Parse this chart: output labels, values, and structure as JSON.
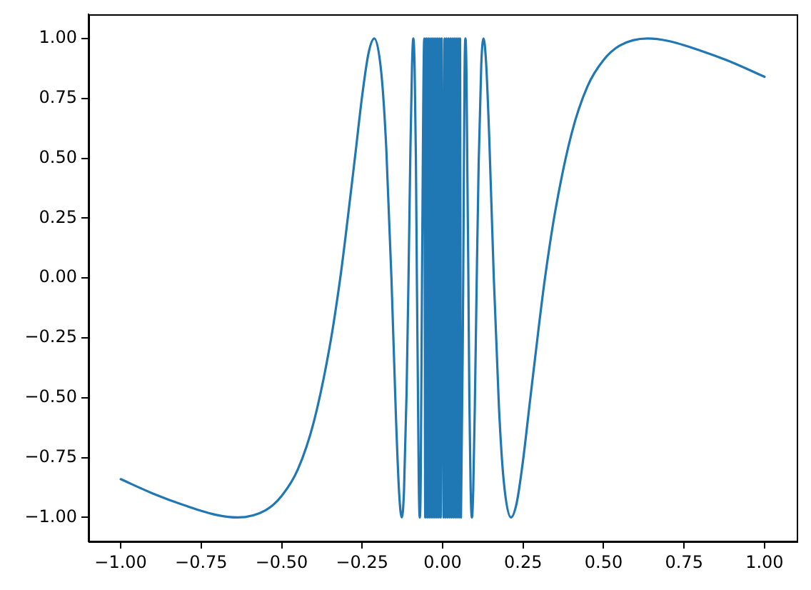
{
  "chart_data": {
    "type": "line",
    "x": [
      -1,
      -0.9,
      -0.8,
      -0.7,
      -0.637,
      -0.55,
      -0.5,
      -0.45,
      -0.4,
      -0.35,
      -0.318,
      -0.3,
      -0.27,
      -0.25,
      -0.23,
      -0.212,
      -0.19,
      -0.175,
      -0.159,
      -0.145,
      -0.135,
      -0.127,
      -0.12,
      -0.112,
      -0.106,
      -0.1,
      -0.095,
      -0.091,
      -0.087,
      -0.083,
      -0.08,
      -0.077,
      -0.074,
      -0.071,
      -0.068,
      -0.064,
      -0.057,
      -0.054,
      -0.051,
      -0.048,
      -0.045,
      -0.042,
      -0.039,
      -0.036,
      -0.033,
      -0.03,
      -0.027,
      -0.024,
      -0.021,
      -0.018,
      -0.015,
      -0.012,
      -0.009,
      -0.006,
      -0.003,
      0.003,
      0.006,
      0.009,
      0.012,
      0.015,
      0.018,
      0.021,
      0.024,
      0.027,
      0.03,
      0.033,
      0.036,
      0.039,
      0.042,
      0.045,
      0.048,
      0.051,
      0.054,
      0.057,
      0.064,
      0.068,
      0.071,
      0.074,
      0.077,
      0.08,
      0.083,
      0.087,
      0.091,
      0.095,
      0.1,
      0.106,
      0.112,
      0.12,
      0.127,
      0.135,
      0.145,
      0.159,
      0.175,
      0.19,
      0.212,
      0.23,
      0.25,
      0.27,
      0.3,
      0.318,
      0.35,
      0.4,
      0.45,
      0.5,
      0.55,
      0.637,
      0.7,
      0.8,
      0.9,
      1
    ],
    "series": [
      {
        "color": "#1f77b4",
        "values": [
          -0.84,
          -0.9,
          -0.95,
          -0.99,
          -1,
          -0.97,
          -0.91,
          -0.8,
          -0.6,
          -0.28,
          0,
          0.19,
          0.53,
          0.76,
          0.94,
          1,
          0.85,
          0.54,
          0,
          -0.58,
          -0.9,
          -1,
          -0.89,
          -0.48,
          0,
          0.54,
          0.89,
          1,
          0.88,
          0.5,
          0,
          -0.42,
          -0.86,
          -1,
          -0.84,
          0,
          1,
          -1,
          1,
          -1,
          1,
          -1,
          1,
          -1,
          1,
          -1,
          1,
          -1,
          1,
          -1,
          1,
          -1,
          1,
          -1,
          1,
          -1,
          1,
          -1,
          1,
          -1,
          1,
          -1,
          1,
          -1,
          1,
          -1,
          1,
          -1,
          1,
          -1,
          1,
          -1,
          1,
          -1,
          0,
          0.84,
          1,
          0.86,
          0.42,
          0,
          -0.5,
          -0.88,
          -1,
          -0.89,
          -0.54,
          0,
          0.48,
          0.89,
          1,
          0.9,
          0.58,
          0,
          -0.54,
          -0.85,
          -1,
          -0.94,
          -0.76,
          -0.53,
          -0.19,
          0,
          0.28,
          0.6,
          0.8,
          0.91,
          0.97,
          1,
          0.99,
          0.95,
          0.9,
          0.84
        ]
      }
    ],
    "xlim": [
      -1.1,
      1.1
    ],
    "ylim": [
      -1.1,
      1.1
    ],
    "xticks": [
      {
        "value": -1,
        "label": "−1.00"
      },
      {
        "value": -0.75,
        "label": "−0.75"
      },
      {
        "value": -0.5,
        "label": "−0.50"
      },
      {
        "value": -0.25,
        "label": "−0.25"
      },
      {
        "value": 0,
        "label": "0.00"
      },
      {
        "value": 0.25,
        "label": "0.25"
      },
      {
        "value": 0.5,
        "label": "0.50"
      },
      {
        "value": 0.75,
        "label": "0.75"
      },
      {
        "value": 1,
        "label": "1.00"
      }
    ],
    "yticks": [
      {
        "value": -1,
        "label": "−1.00"
      },
      {
        "value": -0.75,
        "label": "−0.75"
      },
      {
        "value": -0.5,
        "label": "−0.50"
      },
      {
        "value": -0.25,
        "label": "−0.25"
      },
      {
        "value": 0,
        "label": "0.00"
      },
      {
        "value": 0.25,
        "label": "0.25"
      },
      {
        "value": 0.5,
        "label": "0.50"
      },
      {
        "value": 0.75,
        "label": "0.75"
      },
      {
        "value": 1,
        "label": "1.00"
      }
    ]
  }
}
